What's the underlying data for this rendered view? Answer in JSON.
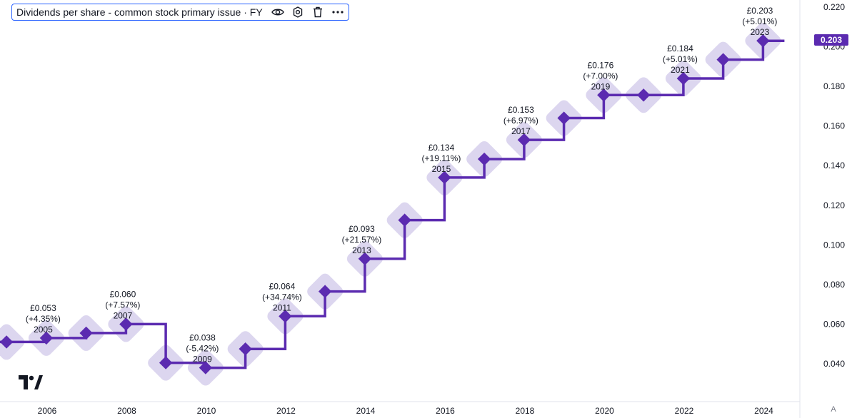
{
  "legend": {
    "title": "Dividends per share - common stock primary issue · FY"
  },
  "price_badge": "0.203",
  "axis_toggle": "A",
  "icons": [
    "eye-icon",
    "settings-icon",
    "trash-icon",
    "more-icon",
    "tradingview-logo-icon"
  ],
  "colors": {
    "line": "#5b2bb0",
    "halo": "#dcd6ef",
    "badge": "#5b2bb0",
    "legend_border": "#2962ff"
  },
  "chart_data": {
    "type": "line",
    "style": "step",
    "series": [
      {
        "name": "",
        "x": [
          2004.98,
          2005.98,
          2006.98,
          2007.98,
          2008.98,
          2009.98,
          2010.98,
          2011.98,
          2012.98,
          2013.98,
          2014.98,
          2015.98,
          2016.98,
          2017.98,
          2018.98,
          2019.98,
          2020.98,
          2021.98,
          2022.98,
          2023.98
        ],
        "values": [
          0.051,
          0.053,
          0.0555,
          0.06,
          0.0405,
          0.038,
          0.0475,
          0.064,
          0.0765,
          0.093,
          0.1125,
          0.134,
          0.1433,
          0.153,
          0.164,
          0.1756,
          0.1756,
          0.184,
          0.1935,
          0.203
        ]
      }
    ],
    "annotations": [
      {
        "x": 2005.9,
        "value": "£0.053",
        "change": "(+4.35%)",
        "year": "2005"
      },
      {
        "x": 2007.9,
        "value": "£0.060",
        "change": "(+7.57%)",
        "year": "2007"
      },
      {
        "x": 2009.9,
        "value": "£0.038",
        "change": "(-5.42%)",
        "year": "2009"
      },
      {
        "x": 2011.9,
        "value": "£0.064",
        "change": "(+34.74%)",
        "year": "2011"
      },
      {
        "x": 2013.9,
        "value": "£0.093",
        "change": "(+21.57%)",
        "year": "2013"
      },
      {
        "x": 2015.9,
        "value": "£0.134",
        "change": "(+19.11%)",
        "year": "2015"
      },
      {
        "x": 2017.9,
        "value": "£0.153",
        "change": "(+6.97%)",
        "year": "2017"
      },
      {
        "x": 2019.9,
        "value": "£0.176",
        "change": "(+7.00%)",
        "year": "2019"
      },
      {
        "x": 2021.9,
        "value": "£0.184",
        "change": "(+5.01%)",
        "year": "2021"
      },
      {
        "x": 2023.9,
        "value": "£0.203",
        "change": "(+5.01%)",
        "year": "2023"
      }
    ],
    "x_ticks": [
      "2006",
      "2008",
      "2010",
      "2012",
      "2014",
      "2016",
      "2018",
      "2020",
      "2022",
      "2024"
    ],
    "y_ticks": [
      "0.040",
      "0.060",
      "0.080",
      "0.100",
      "0.120",
      "0.140",
      "0.160",
      "0.180",
      "0.200",
      "0.220"
    ],
    "xlim": [
      2004.75,
      2025.5
    ],
    "ylim": [
      0.0325,
      0.222
    ],
    "grid": false,
    "title": "Dividends per share - common stock primary issue · FY",
    "xlabel": "",
    "ylabel": ""
  }
}
